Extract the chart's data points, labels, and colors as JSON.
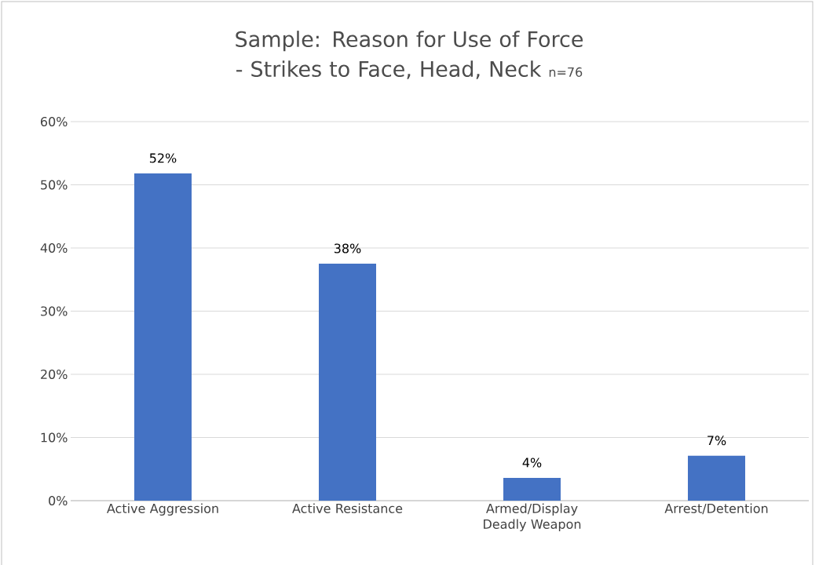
{
  "chart_data": {
    "type": "bar",
    "title": "Sample: Reason for Use of Force - Strikes to Face, Head, Neck",
    "subtitle": "n=76",
    "categories": [
      "Active Aggression",
      "Active Resistance",
      "Armed/Display Deadly Weapon",
      "Arrest/Detention"
    ],
    "values": [
      51.8,
      37.5,
      3.6,
      7.1
    ],
    "value_labels": [
      "52%",
      "38%",
      "4%",
      "7%"
    ],
    "color": "#4472c4",
    "ylim": [
      0,
      60
    ],
    "yticks": [
      {
        "value": 0,
        "label": "0%"
      },
      {
        "value": 10,
        "label": "10%"
      },
      {
        "value": 20,
        "label": "20%"
      },
      {
        "value": 30,
        "label": "30%"
      },
      {
        "value": 40,
        "label": "40%"
      },
      {
        "value": 50,
        "label": "50%"
      },
      {
        "value": 60,
        "label": "60%"
      }
    ],
    "grid": "y"
  }
}
